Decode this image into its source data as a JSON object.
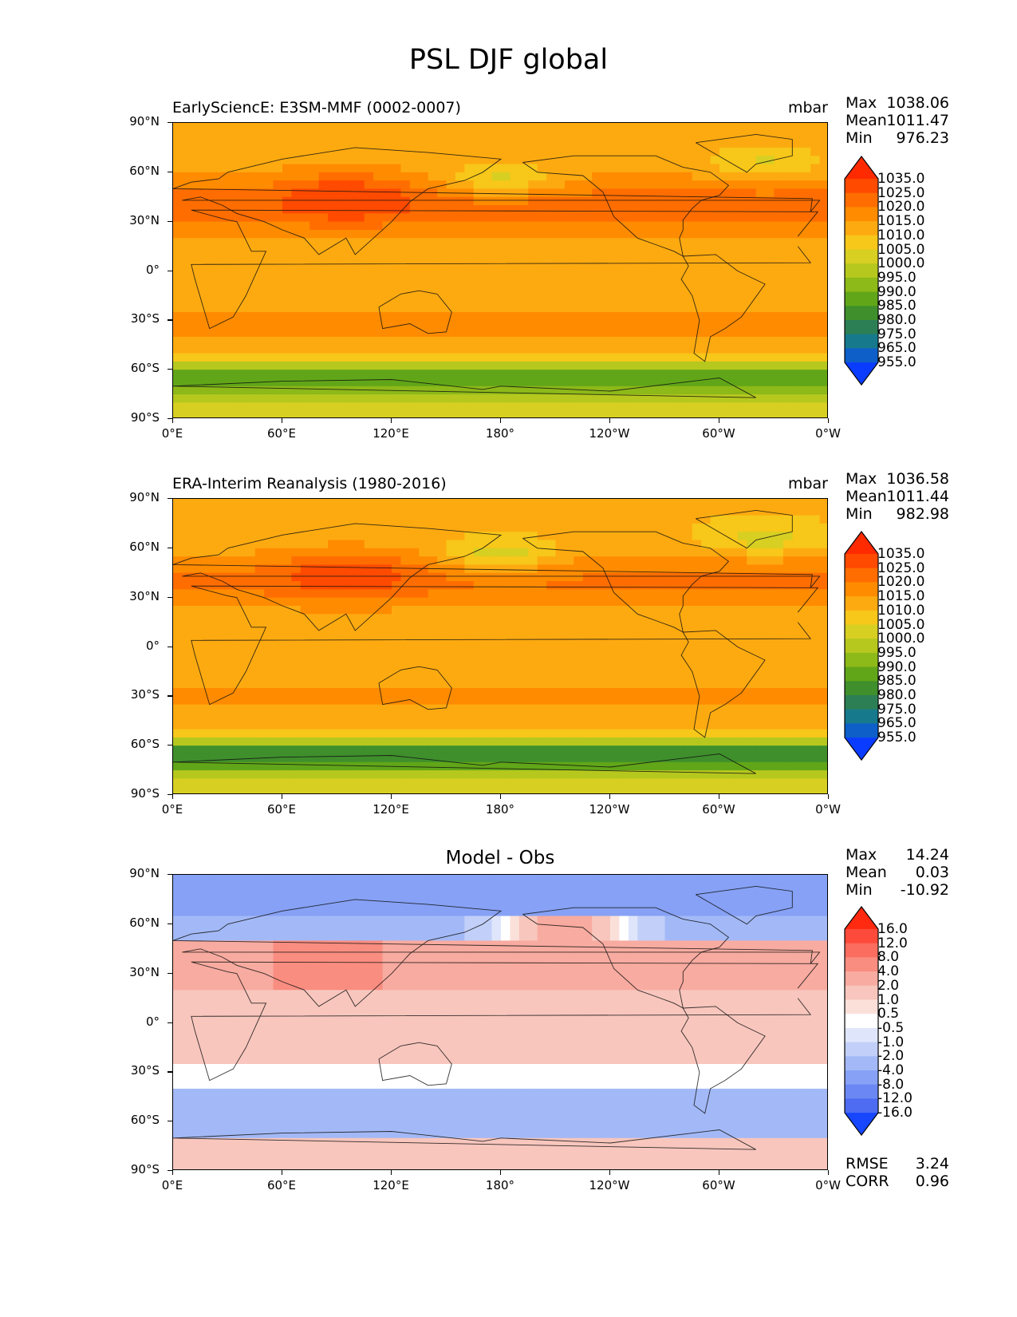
{
  "figure_title": "PSL DJF global",
  "chart_data": [
    {
      "type": "heatmap",
      "title": "EarlySciencE: E3SM-MMF (0002-0007)",
      "units": "mbar",
      "stats": [
        {
          "k": "Max",
          "v": "1038.06"
        },
        {
          "k": "Mean",
          "v": "1011.47"
        },
        {
          "k": "Min",
          "v": "976.23"
        }
      ],
      "colorbar": {
        "levels": [
          "1035.0",
          "1025.0",
          "1020.0",
          "1015.0",
          "1010.0",
          "1005.0",
          "1000.0",
          "995.0",
          "990.0",
          "985.0",
          "980.0",
          "975.0",
          "965.0",
          "955.0"
        ],
        "colors": [
          "#ff2a00",
          "#ff4a00",
          "#ff6d00",
          "#ff8b00",
          "#fdaa10",
          "#f7c719",
          "#d7cf22",
          "#b6c81e",
          "#8db919",
          "#61a618",
          "#3f8f2c",
          "#2c7f55",
          "#167a8c",
          "#0e5fc8",
          "#0a3cff"
        ]
      },
      "xticks": [
        "0°E",
        "60°E",
        "120°E",
        "180°",
        "120°W",
        "60°W",
        "0°W"
      ],
      "yticks": [
        "90°N",
        "60°N",
        "30°N",
        "0°",
        "30°S",
        "60°S",
        "90°S"
      ]
    },
    {
      "type": "heatmap",
      "title": "ERA-Interim Reanalysis (1980-2016)",
      "units": "mbar",
      "stats": [
        {
          "k": "Max",
          "v": "1036.58"
        },
        {
          "k": "Mean",
          "v": "1011.44"
        },
        {
          "k": "Min",
          "v": "982.98"
        }
      ],
      "colorbar": {
        "levels": [
          "1035.0",
          "1025.0",
          "1020.0",
          "1015.0",
          "1010.0",
          "1005.0",
          "1000.0",
          "995.0",
          "990.0",
          "985.0",
          "980.0",
          "975.0",
          "965.0",
          "955.0"
        ],
        "colors": [
          "#ff2a00",
          "#ff4a00",
          "#ff6d00",
          "#ff8b00",
          "#fdaa10",
          "#f7c719",
          "#d7cf22",
          "#b6c81e",
          "#8db919",
          "#61a618",
          "#3f8f2c",
          "#2c7f55",
          "#167a8c",
          "#0e5fc8",
          "#0a3cff"
        ]
      },
      "xticks": [
        "0°E",
        "60°E",
        "120°E",
        "180°",
        "120°W",
        "60°W",
        "0°W"
      ],
      "yticks": [
        "90°N",
        "60°N",
        "30°N",
        "0°",
        "30°S",
        "60°S",
        "90°S"
      ]
    },
    {
      "type": "heatmap",
      "title": "Model - Obs",
      "units": "",
      "stats": [
        {
          "k": "Max",
          "v": "14.24"
        },
        {
          "k": "Mean",
          "v": "0.03"
        },
        {
          "k": "Min",
          "v": "-10.92"
        }
      ],
      "colorbar": {
        "levels": [
          "16.0",
          "12.0",
          "8.0",
          "4.0",
          "2.0",
          "1.0",
          "0.5",
          "-0.5",
          "-1.0",
          "-2.0",
          "-4.0",
          "-8.0",
          "-12.0",
          "-16.0"
        ],
        "colors": [
          "#ff2a10",
          "#fd4a3a",
          "#fb6d5e",
          "#f98d80",
          "#f8aba0",
          "#f8c6bd",
          "#fbe0da",
          "#ffffff",
          "#dfe6fb",
          "#c2d0f9",
          "#a3b9f7",
          "#86a1f5",
          "#6a87f3",
          "#4d6cf2",
          "#1746ff"
        ]
      },
      "xticks": [
        "0°E",
        "60°E",
        "120°E",
        "180°",
        "120°W",
        "60°W",
        "0°W"
      ],
      "yticks": [
        "90°N",
        "60°N",
        "30°N",
        "0°",
        "30°S",
        "60°S",
        "90°S"
      ],
      "metrics": [
        {
          "k": "RMSE",
          "v": "3.24"
        },
        {
          "k": "CORR",
          "v": "0.96"
        }
      ]
    }
  ]
}
